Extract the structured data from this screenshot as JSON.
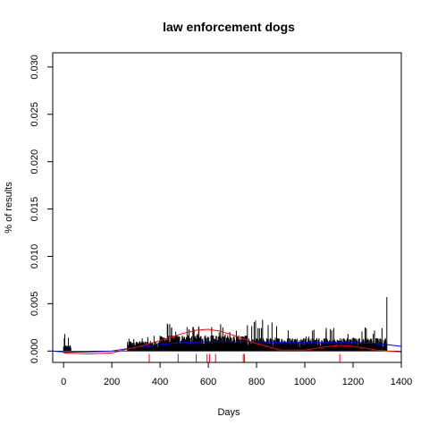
{
  "chart_data": {
    "type": "bar",
    "title": "law enforcement dogs",
    "xlabel": "Days",
    "ylabel": "% of results",
    "xlim": [
      -45,
      1400
    ],
    "ylim": [
      -0.0012,
      0.0315
    ],
    "x_ticks": [
      0,
      200,
      400,
      600,
      800,
      1000,
      1200,
      1400
    ],
    "x_tick_labels": [
      "0",
      "200",
      "400",
      "600",
      "800",
      "1000",
      "1200",
      "1400"
    ],
    "y_ticks": [
      0.0,
      0.005,
      0.01,
      0.015,
      0.02,
      0.025,
      0.03
    ],
    "y_tick_labels": [
      "0.000",
      "0.005",
      "0.010",
      "0.015",
      "0.020",
      "0.025",
      "0.030"
    ],
    "grid": false,
    "colors": {
      "bars": "#000000",
      "smooth_red": "#ff0000",
      "smooth_blue": "#0000ff",
      "rug": "#ff0000"
    },
    "daily_series": {
      "name": "",
      "segments": [
        {
          "x_start": 0,
          "x_end": 30,
          "typical": 0.0004,
          "max": 0.0018
        },
        {
          "x_start": 265,
          "x_end": 400,
          "typical": 0.0007,
          "max": 0.002
        },
        {
          "x_start": 400,
          "x_end": 760,
          "typical": 0.0011,
          "max": 0.0029
        },
        {
          "x_start": 760,
          "x_end": 1000,
          "typical": 0.0009,
          "max": 0.0033
        },
        {
          "x_start": 1000,
          "x_end": 1340,
          "typical": 0.0009,
          "max": 0.0025
        }
      ],
      "spikes": [
        {
          "x": 5,
          "y": 0.0018
        },
        {
          "x": 20,
          "y": 0.0014
        },
        {
          "x": 430,
          "y": 0.0029
        },
        {
          "x": 560,
          "y": 0.0026
        },
        {
          "x": 660,
          "y": 0.0025
        },
        {
          "x": 825,
          "y": 0.0033
        },
        {
          "x": 1250,
          "y": 0.0025
        },
        {
          "x": 1340,
          "y": 0.0057
        }
      ]
    },
    "smooth_red": {
      "x": [
        0,
        100,
        200,
        300,
        400,
        500,
        550,
        600,
        650,
        700,
        800,
        900,
        1000,
        1100,
        1150,
        1200,
        1300,
        1400
      ],
      "y": [
        -0.0002,
        -0.0003,
        -0.0002,
        0.0004,
        0.0011,
        0.0019,
        0.0022,
        0.0023,
        0.0021,
        0.0017,
        0.0008,
        0.0001,
        0.0001,
        0.0005,
        0.0006,
        0.0005,
        0.0001,
        -0.0001
      ]
    },
    "smooth_blue": {
      "x": [
        -45,
        0,
        100,
        200,
        300,
        400,
        500,
        600,
        700,
        800,
        900,
        1000,
        1100,
        1200,
        1300,
        1400
      ],
      "y": [
        0.0,
        -0.0001,
        -0.0001,
        0.0,
        0.0004,
        0.0007,
        0.0009,
        0.001,
        0.001,
        0.001,
        0.0009,
        0.0009,
        0.0009,
        0.0009,
        0.0008,
        0.0005
      ]
    },
    "rug_red": [
      355,
      475,
      550,
      595,
      605,
      630,
      745,
      750,
      1145
    ]
  }
}
